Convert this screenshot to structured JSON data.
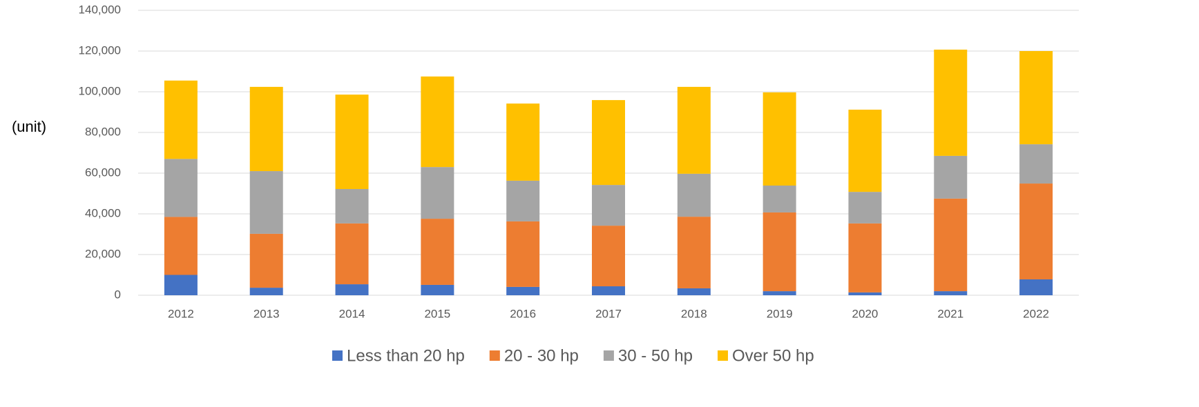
{
  "chart_data": {
    "type": "stacked_bar",
    "y_label": "(unit)",
    "categories": [
      "2012",
      "2013",
      "2014",
      "2015",
      "2016",
      "2017",
      "2018",
      "2019",
      "2020",
      "2021",
      "2022"
    ],
    "series": [
      {
        "name": "Less than 20 hp",
        "color": "#4472c4",
        "values": [
          10000,
          3700,
          5400,
          5100,
          4100,
          4400,
          3400,
          2000,
          1400,
          2000,
          7800
        ]
      },
      {
        "name": "20 - 30 hp",
        "color": "#ed7d31",
        "values": [
          28500,
          26500,
          29900,
          32500,
          32200,
          29800,
          35200,
          38700,
          33900,
          45500,
          47100
        ]
      },
      {
        "name": "30 - 50 hp",
        "color": "#a5a5a5",
        "values": [
          28500,
          30800,
          16900,
          25400,
          20000,
          20000,
          21100,
          13200,
          15500,
          21000,
          19300
        ]
      },
      {
        "name": "Over 50 hp",
        "color": "#ffc000",
        "values": [
          38500,
          41400,
          46400,
          44500,
          37900,
          41700,
          42700,
          45800,
          40400,
          52200,
          45800
        ]
      }
    ],
    "ylim": [
      0,
      140000
    ],
    "yticks": [
      0,
      {
        "value": 20000,
        "label": "20,000"
      },
      {
        "value": 40000,
        "label": "40,000"
      },
      {
        "value": 60000,
        "label": "60,000"
      },
      {
        "value": 80000,
        "label": "80,000"
      },
      {
        "value": 100000,
        "label": "100,000"
      },
      {
        "value": 120000,
        "label": "120,000"
      },
      {
        "value": 140000,
        "label": "140,000"
      }
    ],
    "grid": true,
    "legend": "bottom"
  }
}
